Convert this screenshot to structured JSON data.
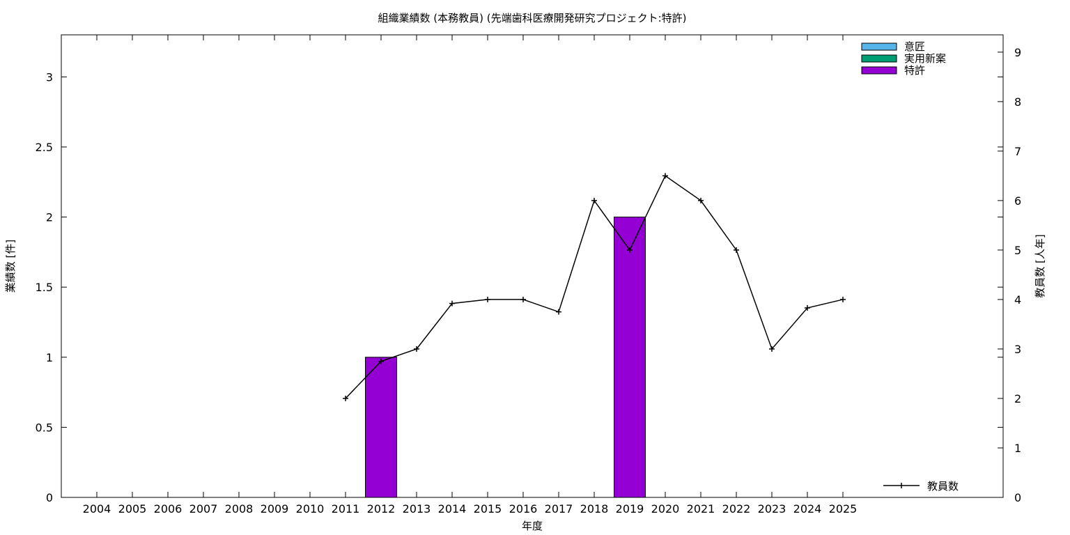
{
  "chart_data": {
    "type": "bar",
    "title": "組織業績数 (本務教員) (先端歯科医療開発研究プロジェクト:特許)",
    "xlabel": "年度",
    "ylabel": "業績数 [件]",
    "y2label": "教員数 [人年]",
    "categories": [
      "2004",
      "2005",
      "2006",
      "2007",
      "2008",
      "2009",
      "2010",
      "2011",
      "2012",
      "2013",
      "2014",
      "2015",
      "2016",
      "2017",
      "2018",
      "2019",
      "2020",
      "2021",
      "2022",
      "2023",
      "2024",
      "2025"
    ],
    "ylim": [
      0,
      3.3
    ],
    "y_ticks": [
      "0",
      "0.5",
      "1",
      "1.5",
      "2",
      "2.5",
      "3"
    ],
    "y2lim": [
      0,
      9.35
    ],
    "y2_ticks": [
      "0",
      "1",
      "2",
      "3",
      "4",
      "5",
      "6",
      "7",
      "8",
      "9"
    ],
    "grid": false,
    "legend_position": "top-right",
    "bar_series": [
      {
        "name": "意匠",
        "color": "#56b4e9",
        "values": [
          0,
          0,
          0,
          0,
          0,
          0,
          0,
          0,
          0,
          0,
          0,
          0,
          0,
          0,
          0,
          0,
          0,
          0,
          0,
          0,
          0,
          0
        ]
      },
      {
        "name": "実用新案",
        "color": "#009e73",
        "values": [
          0,
          0,
          0,
          0,
          0,
          0,
          0,
          0,
          0,
          0,
          0,
          0,
          0,
          0,
          0,
          0,
          0,
          0,
          0,
          0,
          0,
          0
        ]
      },
      {
        "name": "特許",
        "color": "#9400d3",
        "values": [
          0,
          0,
          0,
          0,
          0,
          0,
          0,
          0,
          1,
          0,
          0,
          0,
          0,
          0,
          0,
          2,
          0,
          0,
          0,
          0,
          0,
          0
        ]
      }
    ],
    "line_series": {
      "name": "教員数",
      "color": "#000000",
      "axis": "y2",
      "values": [
        null,
        null,
        null,
        null,
        null,
        null,
        null,
        2,
        2.75,
        3,
        3.92,
        4,
        4,
        3.75,
        6,
        5,
        6.5,
        6,
        5,
        3,
        3.83,
        4
      ]
    }
  }
}
